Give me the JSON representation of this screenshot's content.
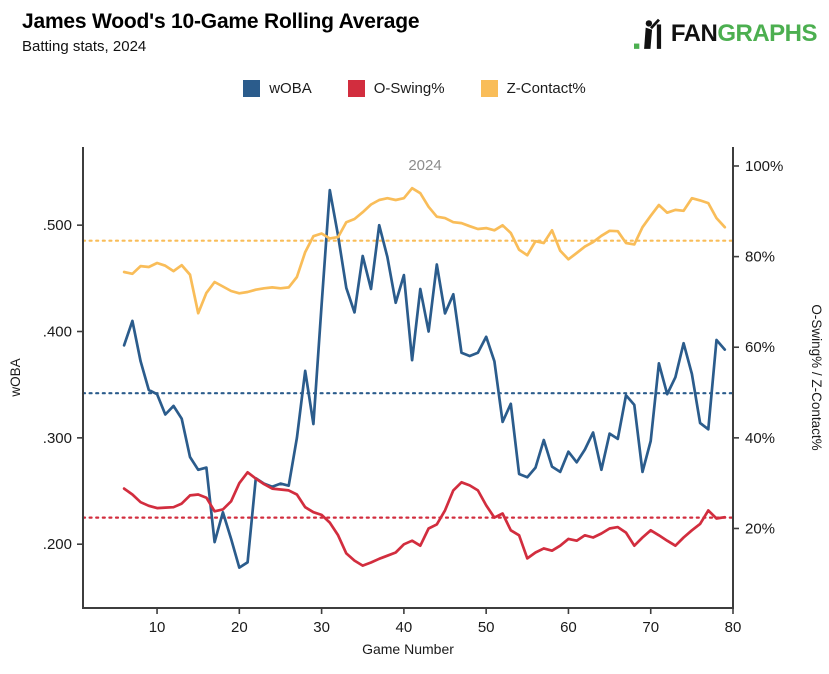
{
  "header": {
    "title": "James Wood's 10-Game Rolling Average",
    "subtitle": "Batting stats, 2024"
  },
  "logo": {
    "fan": "FAN",
    "graphs": "GRAPHS",
    "green": "#4caf50",
    "black": "#111111"
  },
  "chart_data": {
    "type": "line",
    "title_annotation": "2024",
    "xlabel": "Game Number",
    "xlim": [
      1,
      80
    ],
    "x_ticks": [
      10,
      20,
      30,
      40,
      50,
      60,
      70,
      80
    ],
    "grid": false,
    "legend_position": "top",
    "left_axis": {
      "label": "wOBA",
      "ticks": [
        0.2,
        0.3,
        0.4,
        0.5
      ],
      "tick_labels": [
        ".200",
        ".300",
        ".400",
        ".500"
      ],
      "range": [
        0.14,
        0.5735
      ]
    },
    "right_axis": {
      "label": "O-Swing% / Z-Contact%",
      "ticks": [
        20,
        40,
        60,
        80,
        100
      ],
      "tick_labels": [
        "20%",
        "40%",
        "60%",
        "80%",
        "100%"
      ],
      "range": [
        2.45,
        104.19
      ]
    },
    "x": [
      6,
      7,
      8,
      9,
      10,
      11,
      12,
      13,
      14,
      15,
      16,
      17,
      18,
      19,
      20,
      21,
      22,
      23,
      24,
      25,
      26,
      27,
      28,
      29,
      30,
      31,
      32,
      33,
      34,
      35,
      36,
      37,
      38,
      39,
      40,
      41,
      42,
      43,
      44,
      45,
      46,
      47,
      48,
      49,
      50,
      51,
      52,
      53,
      54,
      55,
      56,
      57,
      58,
      59,
      60,
      61,
      62,
      63,
      64,
      65,
      66,
      67,
      68,
      69,
      70,
      71,
      72,
      73,
      74,
      75,
      76,
      77,
      78,
      79
    ],
    "series": [
      {
        "name": "wOBA",
        "axis": "left",
        "color": "#2b5c8c",
        "values": [
          0.387,
          0.41,
          0.372,
          0.345,
          0.341,
          0.322,
          0.33,
          0.318,
          0.282,
          0.27,
          0.272,
          0.202,
          0.23,
          0.205,
          0.178,
          0.183,
          0.262,
          0.257,
          0.254,
          0.257,
          0.255,
          0.3,
          0.363,
          0.313,
          0.425,
          0.533,
          0.49,
          0.441,
          0.418,
          0.471,
          0.44,
          0.5,
          0.47,
          0.427,
          0.453,
          0.373,
          0.44,
          0.4,
          0.463,
          0.417,
          0.435,
          0.38,
          0.377,
          0.38,
          0.395,
          0.372,
          0.315,
          0.332,
          0.266,
          0.263,
          0.272,
          0.298,
          0.273,
          0.268,
          0.287,
          0.277,
          0.289,
          0.305,
          0.27,
          0.304,
          0.299,
          0.34,
          0.331,
          0.268,
          0.297,
          0.37,
          0.341,
          0.357,
          0.389,
          0.36,
          0.314,
          0.308,
          0.392,
          0.383
        ]
      },
      {
        "name": "O-Swing%",
        "axis": "right",
        "color": "#d22d3e",
        "values": [
          28.8,
          27.5,
          25.8,
          25.0,
          24.5,
          24.6,
          24.7,
          25.5,
          27.3,
          27.5,
          26.8,
          23.8,
          24.2,
          26.0,
          30.0,
          32.4,
          31.0,
          29.8,
          28.8,
          28.6,
          28.4,
          27.5,
          24.7,
          23.6,
          23.0,
          21.3,
          18.5,
          14.5,
          12.9,
          11.8,
          12.5,
          13.3,
          14.0,
          14.7,
          16.5,
          17.3,
          16.2,
          20.0,
          20.9,
          24.0,
          28.4,
          30.2,
          29.5,
          28.4,
          25.1,
          22.4,
          23.3,
          19.6,
          18.5,
          13.4,
          14.7,
          15.6,
          15.1,
          16.2,
          17.7,
          17.3,
          18.5,
          18.0,
          18.9,
          20.0,
          20.3,
          19.1,
          16.2,
          18.0,
          19.6,
          18.5,
          17.3,
          16.2,
          18.0,
          19.6,
          21.0,
          24.0,
          22.2,
          22.5
        ]
      },
      {
        "name": "Z-Contact%",
        "axis": "right",
        "color": "#f9bd59",
        "values": [
          76.6,
          76.2,
          77.9,
          77.7,
          78.6,
          78.0,
          76.8,
          78.1,
          76.0,
          67.5,
          72.0,
          74.4,
          73.4,
          72.4,
          71.9,
          72.2,
          72.7,
          73.0,
          73.2,
          73.0,
          73.2,
          75.5,
          81.0,
          84.5,
          85.1,
          84.0,
          84.3,
          87.6,
          88.3,
          89.8,
          91.5,
          92.5,
          92.9,
          92.5,
          92.9,
          95.1,
          94.0,
          91.0,
          88.8,
          88.5,
          87.6,
          87.4,
          86.7,
          86.1,
          86.3,
          85.8,
          86.9,
          85.2,
          81.5,
          80.3,
          83.4,
          83.0,
          85.8,
          81.3,
          79.4,
          80.8,
          82.2,
          83.2,
          84.6,
          85.7,
          85.6,
          83.0,
          82.7,
          86.5,
          89.0,
          91.4,
          89.7,
          90.3,
          90.1,
          92.9,
          92.4,
          91.8,
          88.5,
          86.5
        ]
      }
    ],
    "reference_lines": [
      {
        "series": "wOBA",
        "axis": "left",
        "value": 0.342,
        "color": "#2b5c8c"
      },
      {
        "series": "O-Swing%",
        "axis": "right",
        "value": 22.4,
        "color": "#d22d3e"
      },
      {
        "series": "Z-Contact%",
        "axis": "right",
        "value": 83.5,
        "color": "#f9bd59"
      }
    ]
  }
}
